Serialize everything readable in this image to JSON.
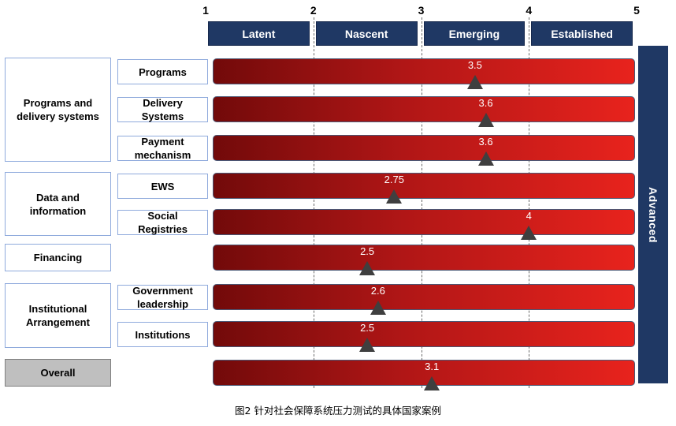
{
  "chart_data": {
    "type": "bar",
    "scale_ticks": [
      1,
      2,
      3,
      4,
      5
    ],
    "xlim": [
      1,
      5
    ],
    "grid_lines_at": [
      2,
      3,
      4
    ],
    "stages": [
      "Latent",
      "Nascent",
      "Emerging",
      "Established"
    ],
    "top_stage": "Advanced",
    "groups": [
      {
        "label": "Programs and delivery systems",
        "items": [
          {
            "label": "Programs",
            "value": 3.5
          },
          {
            "label": "Delivery Systems",
            "value": 3.6
          },
          {
            "label": "Payment mechanism",
            "value": 3.6
          }
        ]
      },
      {
        "label": "Data and information",
        "items": [
          {
            "label": "EWS",
            "value": 2.75
          },
          {
            "label": "Social Registries",
            "value": 4
          }
        ]
      },
      {
        "label": "Financing",
        "items": [
          {
            "value": 2.5
          }
        ]
      },
      {
        "label": "Institutional Arrangement",
        "items": [
          {
            "label": "Government leadership",
            "value": 2.6
          },
          {
            "label": "Institutions",
            "value": 2.5
          }
        ]
      },
      {
        "label": "Overall",
        "overall": true,
        "items": [
          {
            "value": 3.1
          }
        ]
      }
    ],
    "colors": {
      "stage_header": "#1f3864",
      "bar_start": "#720a0a",
      "bar_mid": "#b01616",
      "bar_end": "#e8231d",
      "marker": "#3f3f3f",
      "overall_box": "#bfbfbf"
    }
  },
  "caption": "图2 针对社会保障系统压力测试的具体国家案例"
}
